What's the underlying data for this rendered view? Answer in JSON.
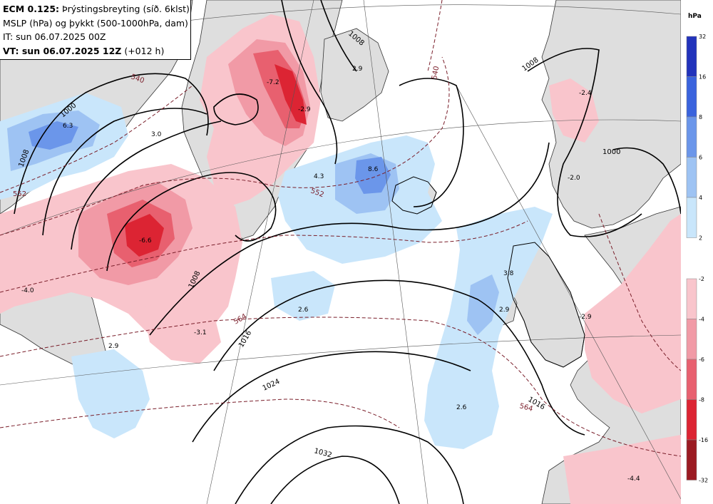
{
  "header": {
    "line1_bold": "ECM 0.125:",
    "line1_rest": " Þrýstingsbreyting (síð. 6klst)",
    "line2": "MSLP (hPa) og þykkt (500-1000hPa, dam)",
    "line3": "IT: sun 06.07.2025 00Z",
    "line4_bold": "VT: sun 06.07.2025 12Z",
    "line4_rest": " (+012 h)"
  },
  "legend": {
    "unit": "hPa",
    "positive": [
      {
        "label": "32",
        "color": "#2233bb"
      },
      {
        "label": "16",
        "color": "#3a63dd"
      },
      {
        "label": "8",
        "color": "#6b96ea"
      },
      {
        "label": "6",
        "color": "#9ec3f3"
      },
      {
        "label": "4",
        "color": "#c9e6fb"
      },
      {
        "label": "2",
        "color": ""
      }
    ],
    "negative": [
      {
        "label": "-2",
        "color": "#f9c5cc"
      },
      {
        "label": "-4",
        "color": "#f19aa6"
      },
      {
        "label": "-6",
        "color": "#e8606f"
      },
      {
        "label": "-8",
        "color": "#dc2433"
      },
      {
        "label": "-16",
        "color": "#9b1a22"
      },
      {
        "label": "-32",
        "color": ""
      }
    ]
  },
  "isobars": [
    "1008",
    "1000",
    "1008",
    "1008",
    "1016",
    "1024",
    "1032",
    "1016",
    "1000",
    "1008"
  ],
  "thickness_labels": [
    "540",
    "552",
    "552",
    "540",
    "564",
    "564"
  ],
  "change_values": [
    "-7.2",
    "-2.9",
    "2.9",
    "-2.4",
    "3.0",
    "6.3",
    "8.6",
    "4.3",
    "-2.0",
    "-6.6",
    "-4.0",
    "-3.1",
    "2.6",
    "2.9",
    "3.8",
    "-2.9",
    "2.6",
    "-4.4",
    "2.9"
  ],
  "colors": {
    "land": "#dedede",
    "sea": "#ffffff",
    "isobar": "#000000",
    "thickness": "#7a1e2a"
  }
}
